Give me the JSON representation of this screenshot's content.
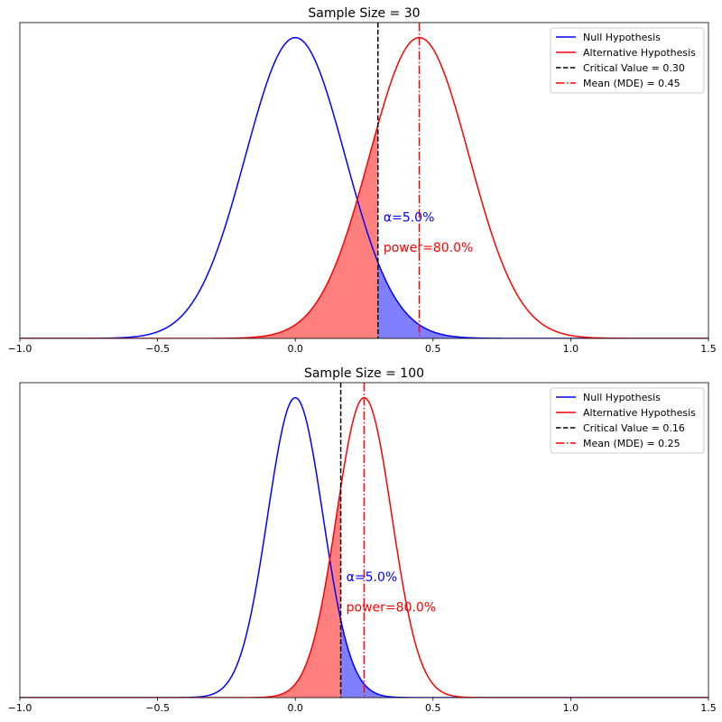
{
  "chart_data": [
    {
      "type": "line",
      "title": "Sample Size = 30",
      "xlim": [
        -1.0,
        1.5
      ],
      "xticks": [
        "−1.0",
        "−0.5",
        "0.0",
        "0.5",
        "1.0",
        "1.5"
      ],
      "xtick_values": [
        -1.0,
        -0.5,
        0.0,
        0.5,
        1.0,
        1.5
      ],
      "yticks_visible": false,
      "grid": false,
      "legend_placement": "upper-right",
      "null_mean": 0.0,
      "alt_mean": 0.45,
      "std_error": 0.181,
      "critical_value": 0.3,
      "series": [
        {
          "name": "Null Hypothesis",
          "color": "#0000ff",
          "style": "solid"
        },
        {
          "name": "Alternative Hypothesis",
          "color": "#ff0000",
          "style": "solid"
        },
        {
          "name": "Critical Value = 0.30",
          "color": "#000000",
          "style": "dashed"
        },
        {
          "name": "Mean (MDE) = 0.45",
          "color": "#ff0000",
          "style": "dashdot"
        }
      ],
      "shading": [
        {
          "region": "alternative below critical value",
          "color": "#ff0000",
          "alpha": 0.5
        },
        {
          "region": "null above critical value",
          "color": "#0000ff",
          "alpha": 0.5
        }
      ],
      "annotations": [
        {
          "text": "α=5.0%",
          "color": "#0000ff"
        },
        {
          "text": "power=80.0%",
          "color": "#ff0000"
        }
      ]
    },
    {
      "type": "line",
      "title": "Sample Size = 100",
      "xlim": [
        -1.0,
        1.5
      ],
      "xticks": [
        "−1.0",
        "−0.5",
        "0.0",
        "0.5",
        "1.0",
        "1.5"
      ],
      "xtick_values": [
        -1.0,
        -0.5,
        0.0,
        0.5,
        1.0,
        1.5
      ],
      "yticks_visible": false,
      "grid": false,
      "legend_placement": "upper-right",
      "null_mean": 0.0,
      "alt_mean": 0.25,
      "std_error": 0.1005,
      "critical_value": 0.165,
      "series": [
        {
          "name": "Null Hypothesis",
          "color": "#0000ff",
          "style": "solid"
        },
        {
          "name": "Alternative Hypothesis",
          "color": "#ff0000",
          "style": "solid"
        },
        {
          "name": "Critical Value = 0.16",
          "color": "#000000",
          "style": "dashed"
        },
        {
          "name": "Mean (MDE) = 0.25",
          "color": "#ff0000",
          "style": "dashdot"
        }
      ],
      "shading": [
        {
          "region": "alternative below critical value",
          "color": "#ff0000",
          "alpha": 0.5
        },
        {
          "region": "null above critical value",
          "color": "#0000ff",
          "alpha": 0.5
        }
      ],
      "annotations": [
        {
          "text": "α=5.0%",
          "color": "#0000ff"
        },
        {
          "text": "power=80.0%",
          "color": "#ff0000"
        }
      ]
    }
  ]
}
